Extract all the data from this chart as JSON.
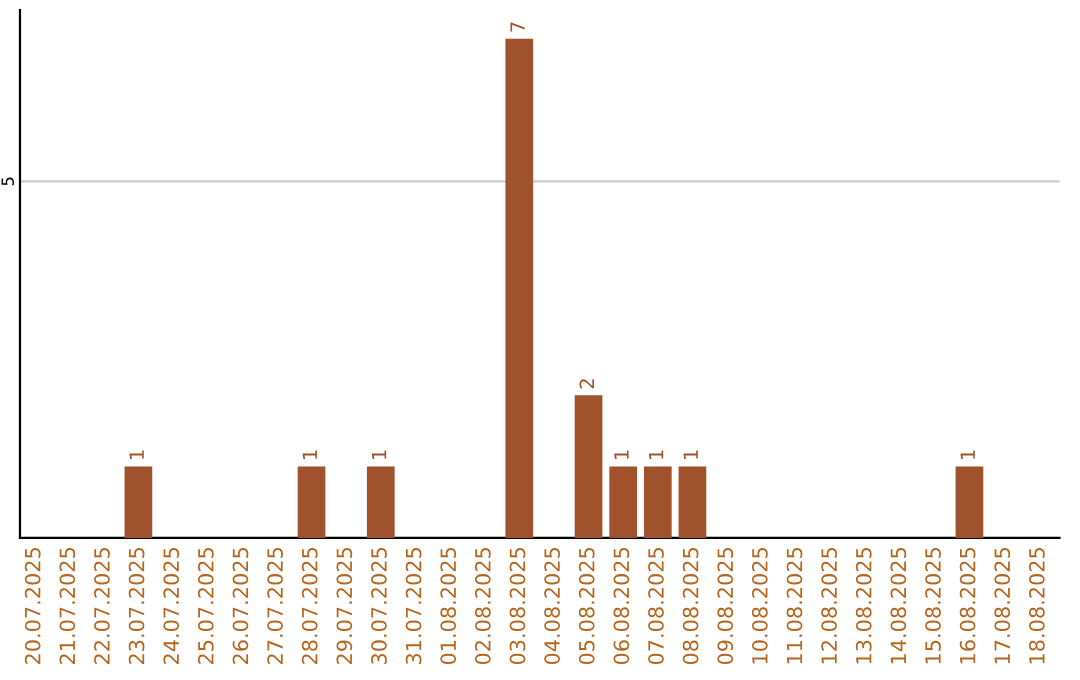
{
  "chart_data": {
    "type": "bar",
    "categories": [
      "20.07.2025",
      "21.07.2025",
      "22.07.2025",
      "23.07.2025",
      "24.07.2025",
      "25.07.2025",
      "26.07.2025",
      "27.07.2025",
      "28.07.2025",
      "29.07.2025",
      "30.07.2025",
      "31.07.2025",
      "01.08.2025",
      "02.08.2025",
      "03.08.2025",
      "04.08.2025",
      "05.08.2025",
      "06.08.2025",
      "07.08.2025",
      "08.08.2025",
      "09.08.2025",
      "10.08.2025",
      "11.08.2025",
      "12.08.2025",
      "13.08.2025",
      "14.08.2025",
      "15.08.2025",
      "16.08.2025",
      "17.08.2025",
      "18.08.2025"
    ],
    "values": [
      0,
      0,
      0,
      1,
      0,
      0,
      0,
      0,
      1,
      0,
      1,
      0,
      0,
      0,
      7,
      0,
      2,
      1,
      1,
      1,
      0,
      0,
      0,
      0,
      0,
      0,
      0,
      1,
      0,
      0
    ],
    "value_labels": [
      null,
      null,
      null,
      "1",
      null,
      null,
      null,
      null,
      "1",
      null,
      "1",
      null,
      null,
      null,
      "7",
      null,
      "2",
      "1",
      "1",
      "1",
      null,
      null,
      null,
      null,
      null,
      null,
      null,
      "1",
      null,
      null
    ],
    "color": "#a0522d",
    "ylim": [
      0,
      7.4
    ],
    "yticks": [
      5
    ],
    "grid": "y"
  }
}
